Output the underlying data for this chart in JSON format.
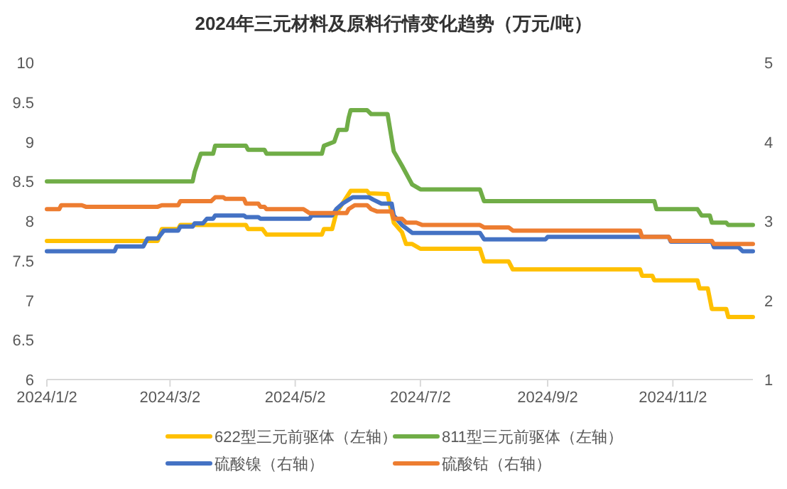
{
  "chart_data": {
    "type": "line",
    "title": "2024年三元材料及原料行情变化趋势（万元/吨）",
    "legend": "bottom",
    "xlim": [
      "2024-01-02",
      "2024-12-11"
    ],
    "xticks": [
      {
        "value": "2024-01-02",
        "label": "2024/1/2"
      },
      {
        "value": "2024-03-02",
        "label": "2024/3/2"
      },
      {
        "value": "2024-05-02",
        "label": "2024/5/2"
      },
      {
        "value": "2024-07-02",
        "label": "2024/7/2"
      },
      {
        "value": "2024-09-02",
        "label": "2024/9/2"
      },
      {
        "value": "2024-11-02",
        "label": "2024/11/2"
      }
    ],
    "ylim": [
      6,
      10
    ],
    "yticks": [
      6,
      6.5,
      7,
      7.5,
      8,
      8.5,
      9,
      9.5,
      10
    ],
    "y2lim": [
      1,
      5
    ],
    "y2ticks": [
      1,
      2,
      3,
      4,
      5
    ],
    "series": [
      {
        "name": "622型三元前驱体（左轴）",
        "color": "#ffc000",
        "x": [
          "2024-01-02",
          "2024-02-25",
          "2024-02-27",
          "2024-03-06",
          "2024-03-07",
          "2024-04-08",
          "2024-04-09",
          "2024-04-16",
          "2024-04-18",
          "2024-05-15",
          "2024-05-16",
          "2024-05-20",
          "2024-05-22",
          "2024-05-29",
          "2024-06-06",
          "2024-06-07",
          "2024-06-16",
          "2024-06-19",
          "2024-06-23",
          "2024-06-25",
          "2024-06-28",
          "2024-07-02",
          "2024-07-31",
          "2024-08-02",
          "2024-08-14",
          "2024-08-16",
          "2024-10-17",
          "2024-10-18",
          "2024-10-23",
          "2024-10-24",
          "2024-11-14",
          "2024-11-15",
          "2024-11-19",
          "2024-11-21",
          "2024-11-28",
          "2024-11-29",
          "2024-12-11"
        ],
        "values": [
          7.75,
          7.75,
          7.9,
          7.9,
          7.95,
          7.95,
          7.9,
          7.9,
          7.83,
          7.83,
          7.9,
          7.9,
          8.1,
          8.38,
          8.38,
          8.35,
          8.34,
          7.98,
          7.86,
          7.71,
          7.71,
          7.65,
          7.65,
          7.49,
          7.49,
          7.39,
          7.39,
          7.31,
          7.31,
          7.25,
          7.25,
          7.15,
          7.15,
          6.89,
          6.89,
          6.79,
          6.79
        ]
      },
      {
        "name": "811型三元前驱体（左轴）",
        "color": "#70ad47",
        "x": [
          "2024-01-02",
          "2024-03-13",
          "2024-03-14",
          "2024-03-17",
          "2024-03-23",
          "2024-03-24",
          "2024-04-08",
          "2024-04-09",
          "2024-04-17",
          "2024-04-18",
          "2024-05-15",
          "2024-05-16",
          "2024-05-21",
          "2024-05-23",
          "2024-05-27",
          "2024-05-28",
          "2024-05-29",
          "2024-06-06",
          "2024-06-08",
          "2024-06-16",
          "2024-06-19",
          "2024-06-23",
          "2024-06-28",
          "2024-07-02",
          "2024-07-31",
          "2024-08-02",
          "2024-10-24",
          "2024-10-25",
          "2024-11-14",
          "2024-11-16",
          "2024-11-20",
          "2024-11-21",
          "2024-11-28",
          "2024-11-29",
          "2024-12-11"
        ],
        "values": [
          8.5,
          8.5,
          8.62,
          8.85,
          8.85,
          8.95,
          8.95,
          8.9,
          8.9,
          8.85,
          8.85,
          8.95,
          9.0,
          9.15,
          9.15,
          9.3,
          9.4,
          9.4,
          9.35,
          9.35,
          8.88,
          8.7,
          8.46,
          8.4,
          8.4,
          8.25,
          8.25,
          8.15,
          8.15,
          8.07,
          8.07,
          7.98,
          7.98,
          7.95,
          7.95
        ]
      },
      {
        "name": "硫酸镍（右轴）",
        "color": "#4472c4",
        "axis": "y2",
        "x": [
          "2024-01-02",
          "2024-02-04",
          "2024-02-05",
          "2024-02-18",
          "2024-02-20",
          "2024-02-25",
          "2024-02-28",
          "2024-03-06",
          "2024-03-07",
          "2024-03-13",
          "2024-03-14",
          "2024-03-18",
          "2024-03-20",
          "2024-03-23",
          "2024-03-24",
          "2024-04-07",
          "2024-04-08",
          "2024-04-14",
          "2024-04-15",
          "2024-05-09",
          "2024-05-10",
          "2024-05-20",
          "2024-05-22",
          "2024-05-25",
          "2024-05-30",
          "2024-06-07",
          "2024-06-09",
          "2024-06-13",
          "2024-06-18",
          "2024-06-19",
          "2024-06-23",
          "2024-06-28",
          "2024-07-31",
          "2024-08-02",
          "2024-09-01",
          "2024-09-02",
          "2024-10-31",
          "2024-11-01",
          "2024-11-21",
          "2024-11-22",
          "2024-12-04",
          "2024-12-06",
          "2024-12-11"
        ],
        "values": [
          2.62,
          2.62,
          2.68,
          2.68,
          2.78,
          2.78,
          2.88,
          2.88,
          2.93,
          2.93,
          2.97,
          2.97,
          3.03,
          3.03,
          3.07,
          3.07,
          3.05,
          3.05,
          3.03,
          3.03,
          3.07,
          3.07,
          3.15,
          3.22,
          3.3,
          3.3,
          3.27,
          3.22,
          3.22,
          3.07,
          2.95,
          2.85,
          2.85,
          2.77,
          2.77,
          2.8,
          2.8,
          2.74,
          2.74,
          2.67,
          2.67,
          2.62,
          2.62
        ]
      },
      {
        "name": "硫酸钴（右轴）",
        "color": "#ed7d31",
        "axis": "y2",
        "x": [
          "2024-01-02",
          "2024-01-08",
          "2024-01-09",
          "2024-01-19",
          "2024-01-21",
          "2024-02-25",
          "2024-02-27",
          "2024-03-06",
          "2024-03-07",
          "2024-03-22",
          "2024-03-24",
          "2024-03-28",
          "2024-03-29",
          "2024-04-07",
          "2024-04-08",
          "2024-04-14",
          "2024-04-15",
          "2024-04-17",
          "2024-04-18",
          "2024-05-06",
          "2024-05-09",
          "2024-05-27",
          "2024-05-28",
          "2024-05-31",
          "2024-06-06",
          "2024-06-08",
          "2024-06-11",
          "2024-06-18",
          "2024-06-19",
          "2024-06-23",
          "2024-06-25",
          "2024-06-30",
          "2024-07-03",
          "2024-07-31",
          "2024-08-02",
          "2024-08-14",
          "2024-08-16",
          "2024-10-17",
          "2024-10-18",
          "2024-10-31",
          "2024-11-01",
          "2024-11-21",
          "2024-11-22",
          "2024-12-11"
        ],
        "values": [
          3.15,
          3.15,
          3.2,
          3.2,
          3.18,
          3.18,
          3.2,
          3.2,
          3.25,
          3.25,
          3.3,
          3.3,
          3.28,
          3.28,
          3.22,
          3.22,
          3.18,
          3.18,
          3.15,
          3.15,
          3.1,
          3.1,
          3.15,
          3.2,
          3.2,
          3.15,
          3.12,
          3.12,
          3.03,
          3.03,
          2.98,
          2.98,
          2.95,
          2.95,
          2.92,
          2.92,
          2.88,
          2.88,
          2.8,
          2.8,
          2.75,
          2.75,
          2.71,
          2.71
        ]
      }
    ]
  }
}
